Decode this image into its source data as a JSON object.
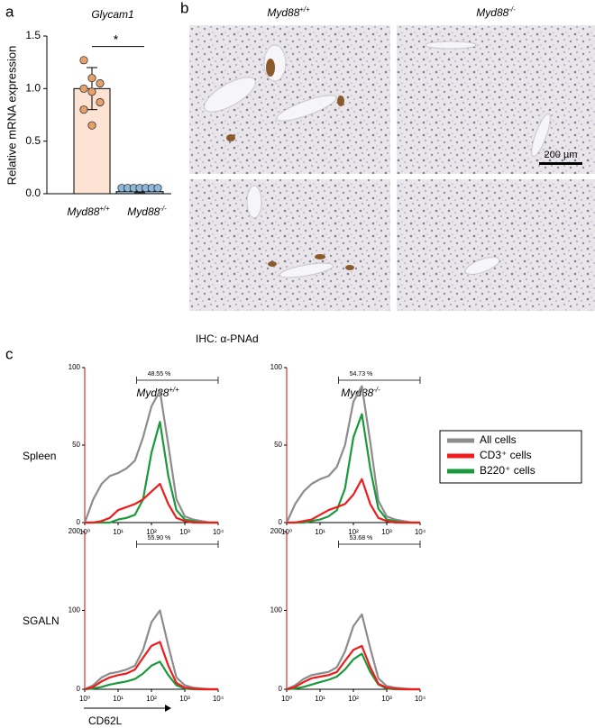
{
  "panel_labels": [
    "a",
    "b",
    "c"
  ],
  "ihc": {
    "columns": [
      {
        "gene": "Myd88",
        "genotype": "+/+"
      },
      {
        "gene": "Myd88",
        "genotype": "-/-"
      }
    ],
    "scale_bar": "200 µm",
    "caption": "IHC: α-PNAd"
  },
  "flow": {
    "columns": [
      {
        "gene": "Myd88",
        "genotype": "+/+"
      },
      {
        "gene": "Myd88",
        "genotype": "-/-"
      }
    ],
    "rows": [
      "Spleen",
      "SGALN"
    ],
    "x_label": "CD62L"
  },
  "chart_data": [
    {
      "type": "bar",
      "title": "Glycam1",
      "y_label": "Relative mRNA expression",
      "categories": [
        {
          "gene": "Myd88",
          "genotype": "+/+"
        },
        {
          "gene": "Myd88",
          "genotype": "-/-"
        }
      ],
      "values": [
        1.0,
        0.02
      ],
      "errors": [
        0.2,
        0.01
      ],
      "points": [
        [
          1.27,
          1.1,
          1.05,
          1.0,
          0.97,
          0.87,
          0.8,
          0.65
        ],
        [
          0.02,
          0.02,
          0.02,
          0.02,
          0.02,
          0.02,
          0.02
        ]
      ],
      "colors": [
        "#fde3d4",
        "#9fc3e0"
      ],
      "point_colors": [
        "#e8a06a",
        "#8fb7da"
      ],
      "ylim": [
        0,
        1.5
      ],
      "yticks": [
        {
          "value": 0,
          "label": "0.0"
        },
        {
          "value": 0.5,
          "label": "0.5"
        },
        {
          "value": 1,
          "label": "1.0"
        },
        {
          "value": 1.5,
          "label": "1.5"
        }
      ],
      "annotation": "*",
      "annotation_y": 1.4
    },
    {
      "type": "line",
      "xscale": "log",
      "x": [
        1,
        1.8,
        3.2,
        5.6,
        10,
        18,
        32,
        56,
        100,
        180,
        320,
        560,
        1000,
        1800,
        3200,
        5600,
        10000
      ],
      "xlim": [
        1,
        10000
      ],
      "xticks": [
        {
          "value": 1,
          "label": "10⁰"
        },
        {
          "value": 10,
          "label": "10¹"
        },
        {
          "value": 100,
          "label": "10²"
        },
        {
          "value": 1000,
          "label": "10³"
        },
        {
          "value": 10000,
          "label": "10⁴"
        }
      ],
      "ylim": [
        0,
        100
      ],
      "yticks": [
        0,
        50,
        100
      ],
      "gate": {
        "range": [
          36,
          10000
        ],
        "label": "48.55 %"
      },
      "series": [
        {
          "name": "All cells",
          "color": "#8c8c8c",
          "values": [
            0,
            15,
            25,
            30,
            32,
            35,
            40,
            55,
            75,
            85,
            50,
            15,
            4,
            2,
            1,
            0,
            0
          ]
        },
        {
          "name": "B220⁺ cells",
          "color": "#1a9a3a",
          "values": [
            0,
            0,
            0,
            0,
            2,
            3,
            5,
            15,
            45,
            65,
            30,
            8,
            2,
            1,
            0,
            0,
            0
          ]
        },
        {
          "name": "CD3⁺ cells",
          "color": "#ee1c1c",
          "values": [
            0,
            0,
            1,
            3,
            8,
            10,
            12,
            15,
            20,
            25,
            12,
            3,
            1,
            0,
            0,
            0,
            0
          ]
        }
      ]
    },
    {
      "type": "line",
      "xscale": "log",
      "x": [
        1,
        1.8,
        3.2,
        5.6,
        10,
        18,
        32,
        56,
        100,
        180,
        320,
        560,
        1000,
        1800,
        3200,
        5600,
        10000
      ],
      "xlim": [
        1,
        10000
      ],
      "xticks": [
        {
          "value": 1,
          "label": "10⁰"
        },
        {
          "value": 10,
          "label": "10¹"
        },
        {
          "value": 100,
          "label": "10²"
        },
        {
          "value": 1000,
          "label": "10³"
        },
        {
          "value": 10000,
          "label": "10⁴"
        }
      ],
      "ylim": [
        0,
        100
      ],
      "yticks": [
        0,
        50,
        100
      ],
      "gate": {
        "range": [
          36,
          10000
        ],
        "label": "54.73 %"
      },
      "series": [
        {
          "color": "#8c8c8c",
          "values": [
            0,
            12,
            20,
            25,
            28,
            30,
            36,
            50,
            78,
            88,
            52,
            14,
            4,
            2,
            1,
            0,
            0
          ]
        },
        {
          "color": "#1a9a3a",
          "values": [
            0,
            0,
            0,
            1,
            2,
            4,
            8,
            22,
            55,
            70,
            35,
            9,
            2,
            1,
            0,
            0,
            0
          ]
        },
        {
          "color": "#ee1c1c",
          "values": [
            0,
            0,
            1,
            2,
            5,
            8,
            10,
            12,
            18,
            28,
            12,
            3,
            1,
            0,
            0,
            0,
            0
          ]
        }
      ]
    },
    {
      "type": "line",
      "xscale": "log",
      "x": [
        1,
        1.8,
        3.2,
        5.6,
        10,
        18,
        32,
        56,
        100,
        180,
        320,
        560,
        1000,
        1800,
        3200,
        5600,
        10000
      ],
      "xlim": [
        1,
        10000
      ],
      "xticks": [
        {
          "value": 1,
          "label": "10⁰"
        },
        {
          "value": 10,
          "label": "10¹"
        },
        {
          "value": 100,
          "label": "10²"
        },
        {
          "value": 1000,
          "label": "10³"
        },
        {
          "value": 10000,
          "label": "10⁴"
        }
      ],
      "ylim": [
        0,
        200
      ],
      "yticks": [
        0,
        100,
        200
      ],
      "gate": {
        "range": [
          36,
          10000
        ],
        "label": "55.90 %"
      },
      "series": [
        {
          "color": "#8c8c8c",
          "values": [
            0,
            5,
            15,
            20,
            22,
            25,
            30,
            50,
            85,
            100,
            55,
            15,
            5,
            2,
            1,
            0,
            0
          ]
        },
        {
          "color": "#1a9a3a",
          "values": [
            0,
            1,
            3,
            6,
            8,
            10,
            13,
            20,
            30,
            35,
            18,
            5,
            1,
            0,
            0,
            0,
            0
          ]
        },
        {
          "color": "#ee1c1c",
          "values": [
            0,
            3,
            10,
            15,
            18,
            20,
            25,
            40,
            55,
            60,
            30,
            8,
            2,
            1,
            0,
            0,
            0
          ]
        }
      ]
    },
    {
      "type": "line",
      "xscale": "log",
      "x": [
        1,
        1.8,
        3.2,
        5.6,
        10,
        18,
        32,
        56,
        100,
        180,
        320,
        560,
        1000,
        1800,
        3200,
        5600,
        10000
      ],
      "xlim": [
        1,
        10000
      ],
      "xticks": [
        {
          "value": 1,
          "label": "10⁰"
        },
        {
          "value": 10,
          "label": "10¹"
        },
        {
          "value": 100,
          "label": "10²"
        },
        {
          "value": 1000,
          "label": "10³"
        },
        {
          "value": 10000,
          "label": "10⁴"
        }
      ],
      "ylim": [
        0,
        200
      ],
      "yticks": [
        0,
        100,
        200
      ],
      "gate": {
        "range": [
          36,
          10000
        ],
        "label": "53.68 %"
      },
      "series": [
        {
          "color": "#8c8c8c",
          "values": [
            0,
            5,
            13,
            18,
            20,
            22,
            28,
            48,
            80,
            95,
            52,
            14,
            4,
            2,
            1,
            0,
            0
          ]
        },
        {
          "color": "#1a9a3a",
          "values": [
            0,
            1,
            3,
            6,
            9,
            12,
            16,
            25,
            38,
            45,
            22,
            6,
            1,
            0,
            0,
            0,
            0
          ]
        },
        {
          "color": "#ee1c1c",
          "values": [
            0,
            3,
            9,
            14,
            16,
            18,
            22,
            36,
            50,
            55,
            28,
            7,
            2,
            1,
            0,
            0,
            0
          ]
        }
      ]
    }
  ]
}
